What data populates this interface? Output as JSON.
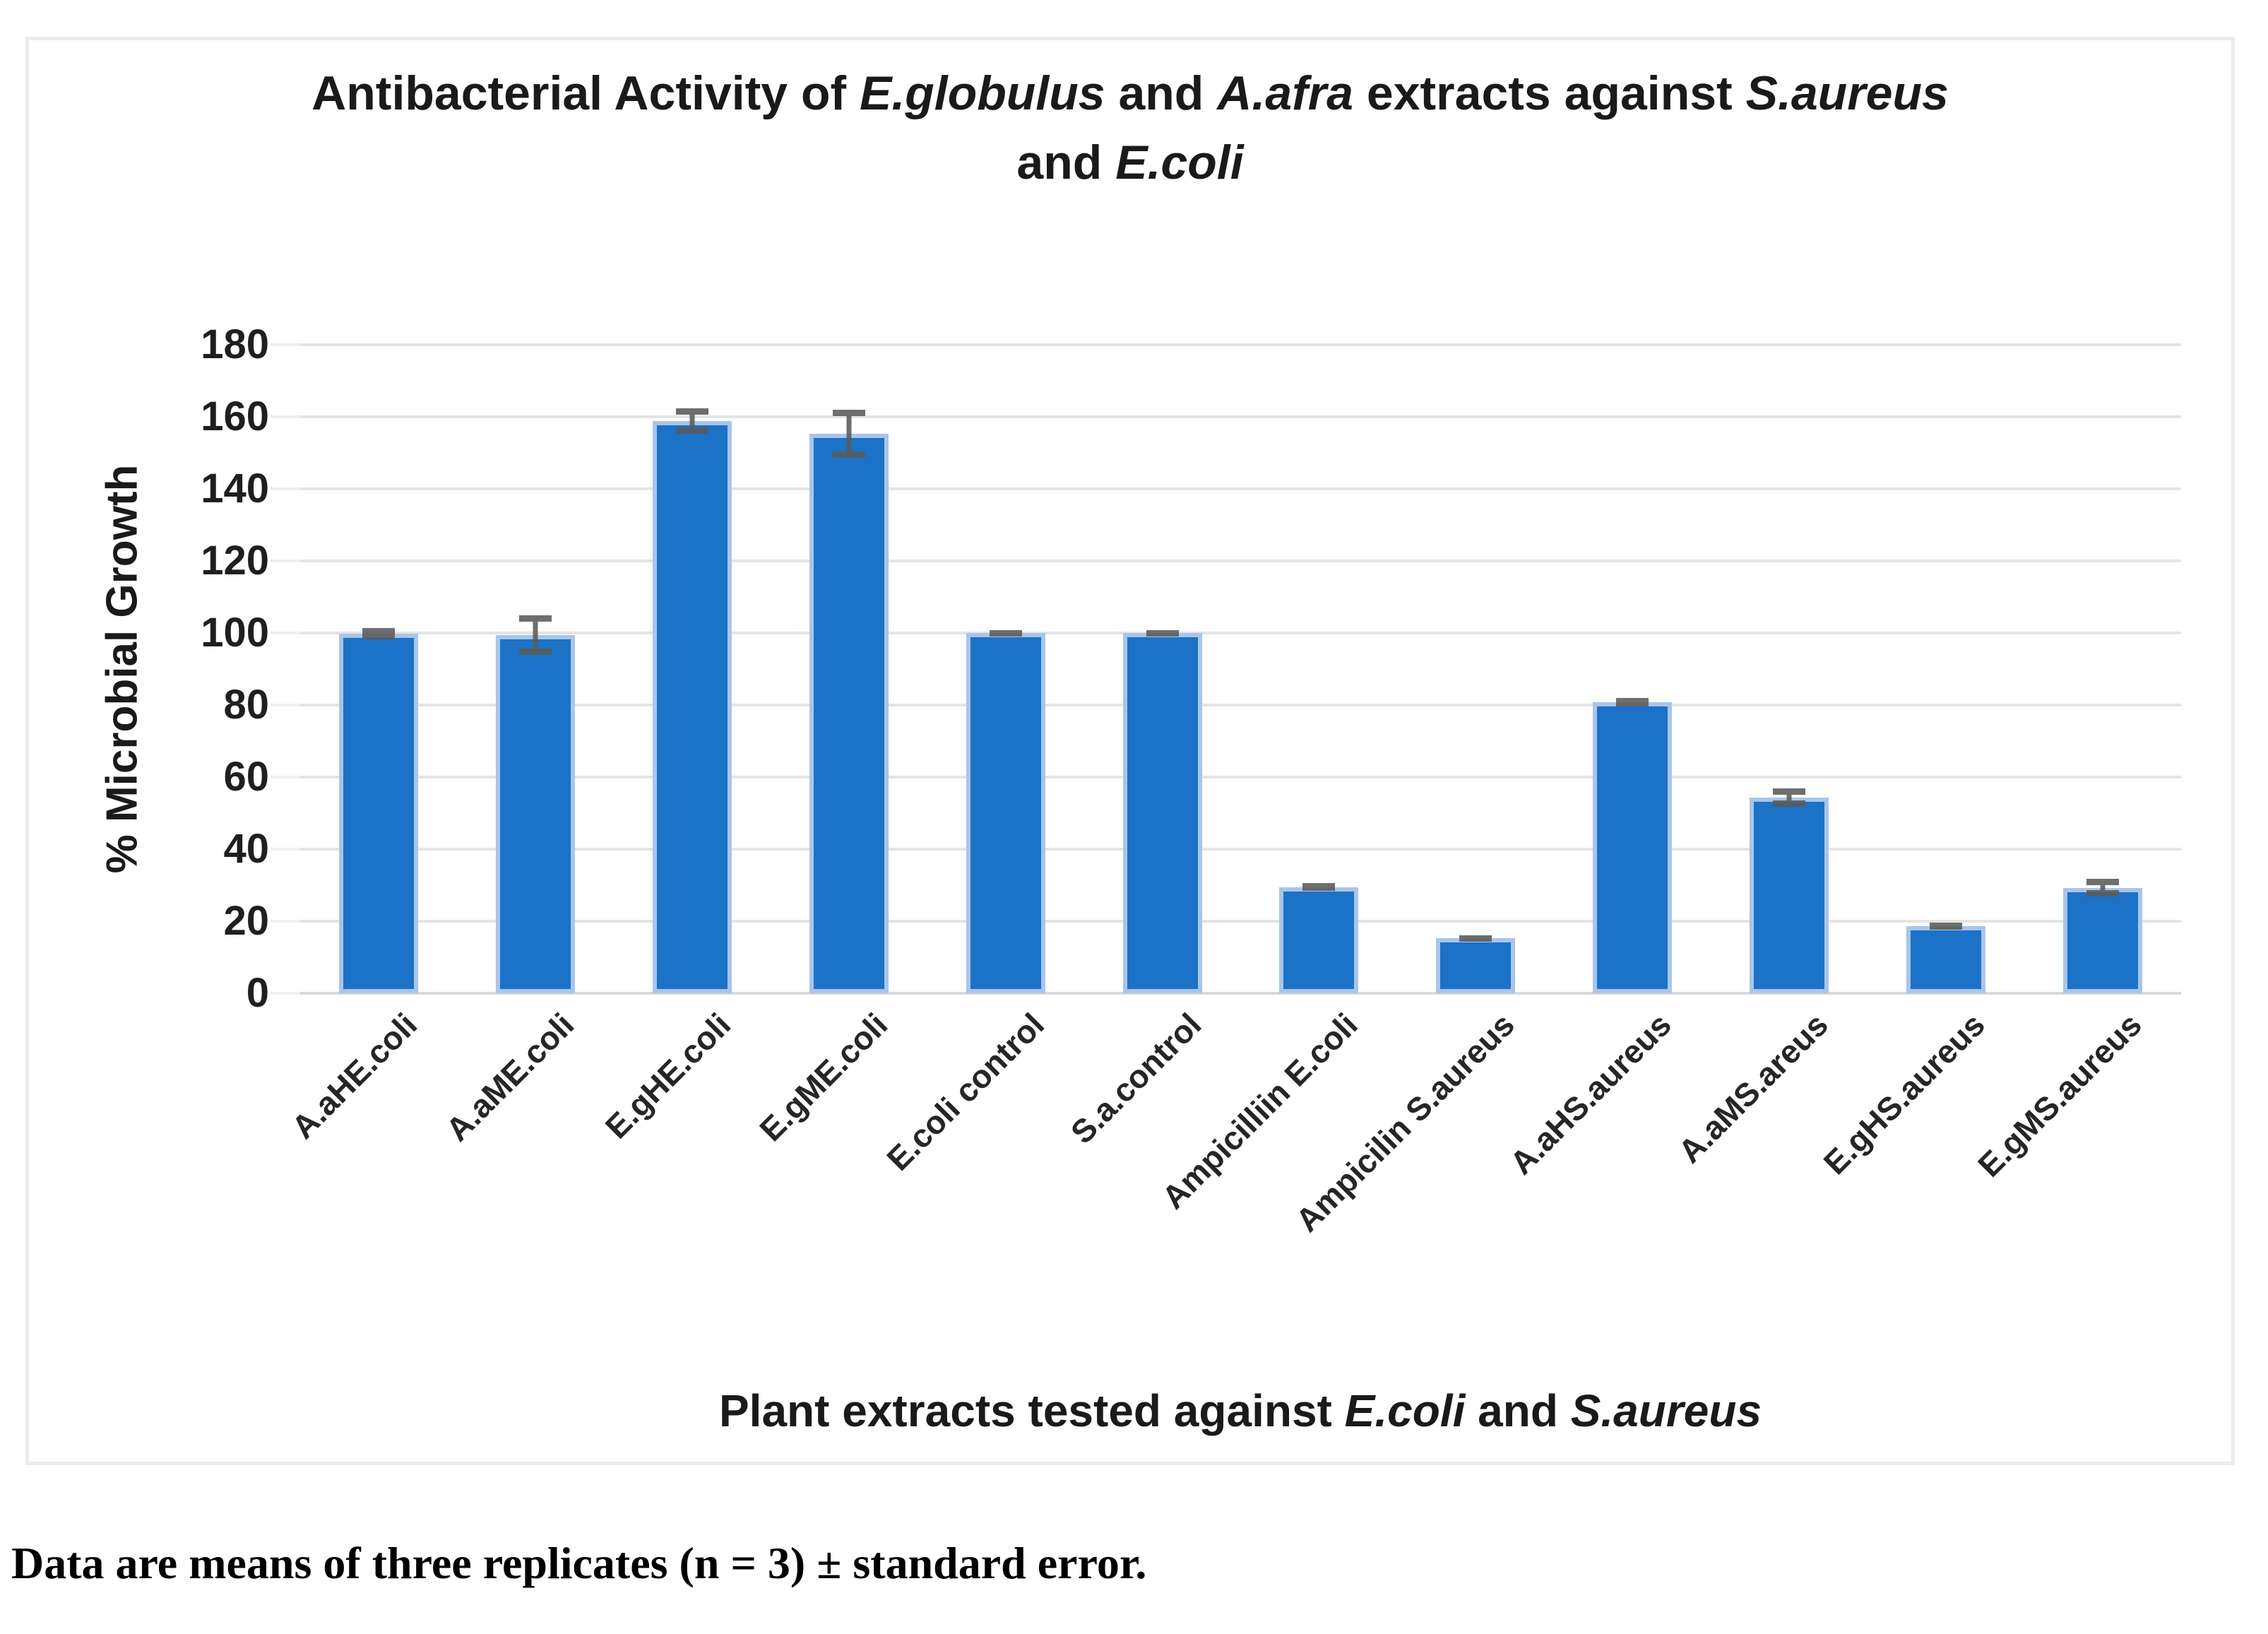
{
  "chart_data": {
    "type": "bar",
    "title_line1": [
      {
        "text": "Antibacterial Activity of ",
        "italic": false
      },
      {
        "text": "E.globulus",
        "italic": true
      },
      {
        "text": " and ",
        "italic": false
      },
      {
        "text": "A.afra",
        "italic": true
      },
      {
        "text": " extracts against ",
        "italic": false
      },
      {
        "text": "S.aureus",
        "italic": true
      }
    ],
    "title_line2": [
      {
        "text": "and ",
        "italic": false
      },
      {
        "text": "E.coli",
        "italic": true
      }
    ],
    "ylabel": "% Microbial Growth",
    "xlabel_parts": [
      {
        "text": "Plant extracts tested against ",
        "italic": false
      },
      {
        "text": "E.coli",
        "italic": true
      },
      {
        "text": " and ",
        "italic": false
      },
      {
        "text": "S.aureus",
        "italic": true
      }
    ],
    "categories": [
      "A.aHE.coli",
      "A.aME.coli",
      "E.gHE.coli",
      "E.gME.coli",
      "E.coli control",
      "S.a.control",
      "Ampicilliin E.coli",
      "Ampicilin S.aureus",
      "A.aHS.aureus",
      "A.aMS.areus",
      "E.gHS.aureus",
      "E.gMS.aureus"
    ],
    "values": [
      99.8,
      99.5,
      158.8,
      155.3,
      100,
      100,
      29.5,
      15.3,
      80.8,
      54.3,
      18.6,
      29.3
    ],
    "errors": [
      1.5,
      5.5,
      3.5,
      6.6,
      0.8,
      0.8,
      1.0,
      0.7,
      1.2,
      2.6,
      1.0,
      2.4
    ],
    "ylim": [
      0,
      180
    ],
    "ytick_step": 20,
    "ytick_labels": [
      "0",
      "20",
      "40",
      "60",
      "80",
      "100",
      "120",
      "140",
      "160",
      "180"
    ],
    "grid": true,
    "legend": "none",
    "bar_color": "#1B72C6",
    "bar_edge_color": "#A9C5EA",
    "error_color": "#5B5B5B",
    "gridline_color": "#E4E4E4"
  },
  "caption": "Data are means of three replicates (n = 3) ± standard error."
}
